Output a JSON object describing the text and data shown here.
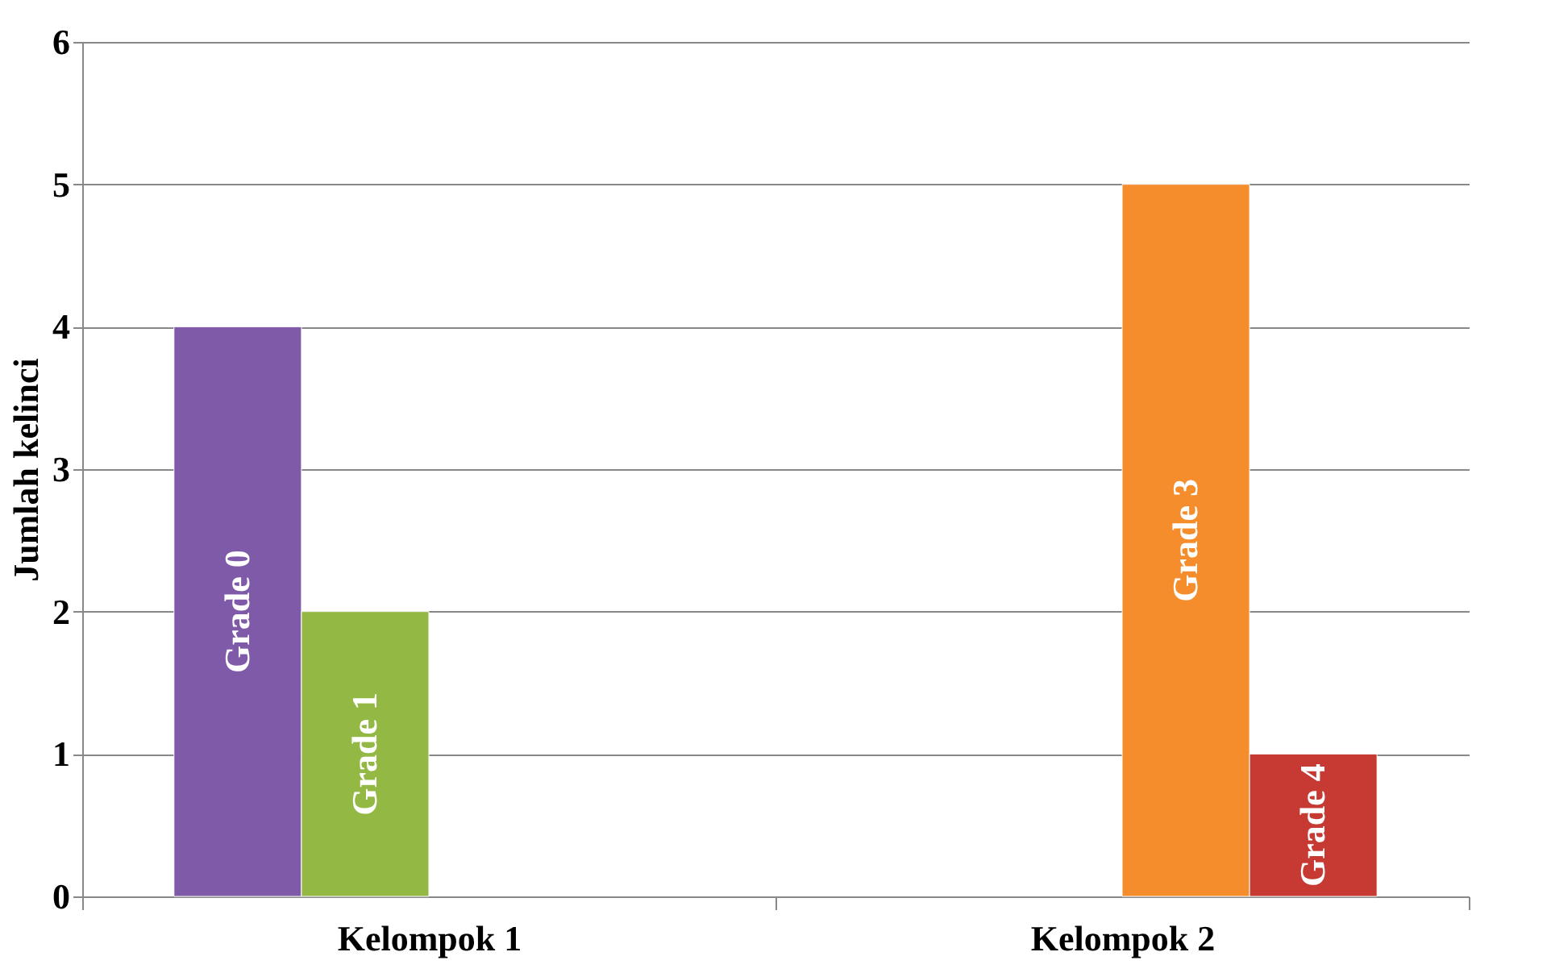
{
  "chart_data": {
    "type": "bar",
    "ylabel": "Jumlah kelinci",
    "categories": [
      "Kelompok 1",
      "Kelompok 2"
    ],
    "series": [
      {
        "name": "Grade 0",
        "color": "#7f5aa8",
        "values": [
          4,
          null
        ]
      },
      {
        "name": "Grade 1",
        "color": "#93b944",
        "values": [
          2,
          null
        ]
      },
      {
        "name": "Grade 3",
        "color": "#f58d2c",
        "values": [
          null,
          5
        ]
      },
      {
        "name": "Grade 4",
        "color": "#c63a33",
        "values": [
          null,
          1
        ]
      }
    ],
    "ylim": [
      0,
      6
    ],
    "yticks": [
      0,
      1,
      2,
      3,
      4,
      5,
      6
    ],
    "grid": "y",
    "legend": false
  }
}
